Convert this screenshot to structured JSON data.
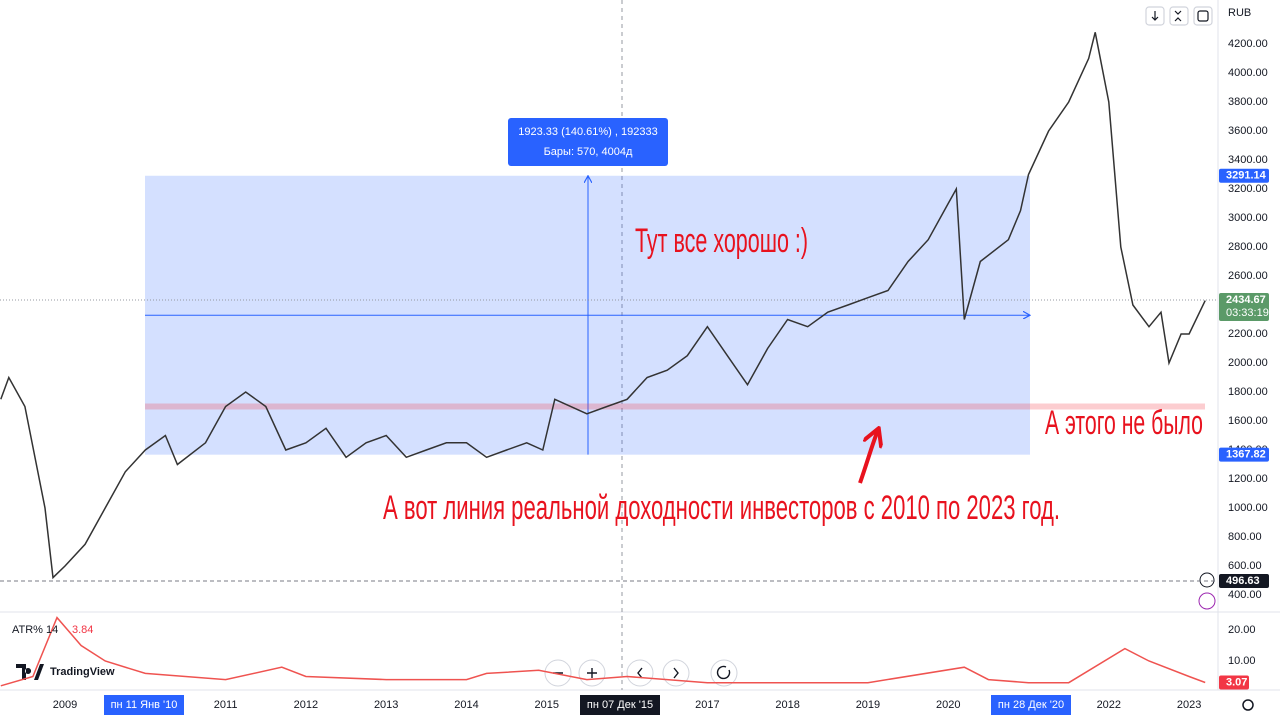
{
  "toolbar": {
    "currency": "RUB"
  },
  "footer": {
    "logo": "TradingView"
  },
  "chart_data": [
    {
      "type": "line",
      "color": "#333333",
      "x": [
        2008.2,
        2008.3,
        2008.5,
        2008.75,
        2008.85,
        2009.0,
        2009.25,
        2009.5,
        2009.75,
        2010.0,
        2010.25,
        2010.4,
        2010.75,
        2011.0,
        2011.25,
        2011.5,
        2011.75,
        2012.0,
        2012.25,
        2012.5,
        2012.75,
        2013.0,
        2013.25,
        2013.5,
        2013.75,
        2014.0,
        2014.25,
        2014.5,
        2014.75,
        2014.95,
        2015.1,
        2015.5,
        2015.75,
        2016.0,
        2016.25,
        2016.5,
        2016.75,
        2017.0,
        2017.25,
        2017.5,
        2017.75,
        2018.0,
        2018.25,
        2018.5,
        2018.75,
        2019.0,
        2019.25,
        2019.5,
        2019.75,
        2020.0,
        2020.1,
        2020.2,
        2020.4,
        2020.75,
        2020.9,
        2021.0,
        2021.25,
        2021.5,
        2021.75,
        2021.83,
        2022.0,
        2022.15,
        2022.3,
        2022.5,
        2022.65,
        2022.75,
        2022.9,
        2023.0,
        2023.2
      ],
      "values": [
        1750,
        1900,
        1700,
        1000,
        520,
        600,
        750,
        1000,
        1250,
        1400,
        1500,
        1300,
        1450,
        1700,
        1800,
        1700,
        1400,
        1450,
        1550,
        1350,
        1450,
        1500,
        1350,
        1400,
        1450,
        1450,
        1350,
        1400,
        1450,
        1400,
        1750,
        1650,
        1700,
        1750,
        1900,
        1950,
        2050,
        2250,
        2050,
        1850,
        2100,
        2300,
        2250,
        2350,
        2400,
        2450,
        2500,
        2700,
        2850,
        3100,
        3200,
        2300,
        2700,
        2850,
        3050,
        3300,
        3600,
        3800,
        4100,
        4280,
        3800,
        2800,
        2400,
        2250,
        2350,
        2000,
        2200,
        2200,
        2430
      ],
      "xlim": [
        2008.19,
        2023.36
      ],
      "ylim": [
        283,
        4503
      ],
      "xticks": [
        2009,
        2011,
        2012,
        2013,
        2014,
        2015,
        2017,
        2018,
        2019,
        2020,
        2022,
        2023
      ],
      "yticks": [
        {
          "value": 400,
          "label": "400.00"
        },
        {
          "value": 600,
          "label": "600.00"
        },
        {
          "value": 800,
          "label": "800.00"
        },
        {
          "value": 1000,
          "label": "1000.00"
        },
        {
          "value": 1200,
          "label": "1200.00"
        },
        {
          "value": 1400,
          "label": "1400.00"
        },
        {
          "value": 1600,
          "label": "1600.00"
        },
        {
          "value": 1800,
          "label": "1800.00"
        },
        {
          "value": 2000,
          "label": "2000.00"
        },
        {
          "value": 2200,
          "label": "2200.00"
        },
        {
          "value": 2400,
          "label": "2400.00"
        },
        {
          "value": 2600,
          "label": "2600.00"
        },
        {
          "value": 2800,
          "label": "2800.00"
        },
        {
          "value": 3000,
          "label": "3000.00"
        },
        {
          "value": 3200,
          "label": "3200.00"
        },
        {
          "value": 3400,
          "label": "3400.00"
        },
        {
          "value": 3600,
          "label": "3600.00"
        },
        {
          "value": 3800,
          "label": "3800.00"
        },
        {
          "value": 4000,
          "label": "4000.00"
        },
        {
          "value": 4200,
          "label": "4200.00"
        }
      ],
      "range_high": 3291.14,
      "range_low": 1367.82,
      "last_price": 2434.67,
      "countdown": "03:33:19",
      "low_marker": 496.63,
      "reference_line": 1700,
      "measure": {
        "line1": "1923.33 (140.61%) , 192333",
        "line2": "Бары: 570, 4004д"
      },
      "crosshair_dates": [
        "пн 11 Янв '10",
        "пн 07 Дек '15",
        "пн 28 Дек '20"
      ],
      "annotations": [
        "Тут все хорошо :)",
        "А этого не было",
        "А вот линия реальной доходности инвесторов с 2010 по 2023 год."
      ]
    },
    {
      "type": "line",
      "title": "ATR% 14",
      "color": "#ef5350",
      "crosshair_value": 3.84,
      "last_value": 3.07,
      "x": [
        2008.2,
        2008.6,
        2008.9,
        2009.2,
        2009.5,
        2010.0,
        2011.0,
        2011.7,
        2012.0,
        2013.0,
        2014.0,
        2014.25,
        2014.9,
        2015.5,
        2016.0,
        2017.0,
        2018.0,
        2019.0,
        2020.2,
        2020.5,
        2021.0,
        2021.5,
        2022.2,
        2022.5,
        2023.0,
        2023.2
      ],
      "values": [
        2,
        5,
        24,
        15,
        10,
        6,
        4,
        8,
        5,
        4,
        4,
        6,
        7,
        4,
        5,
        3,
        3,
        3,
        8,
        4,
        3,
        3,
        14,
        10,
        5,
        3.07
      ],
      "ylim": [
        0.65,
        25.8
      ],
      "yticks": [
        {
          "value": 10,
          "label": "10.00"
        },
        {
          "value": 20,
          "label": "20.00"
        }
      ]
    }
  ]
}
